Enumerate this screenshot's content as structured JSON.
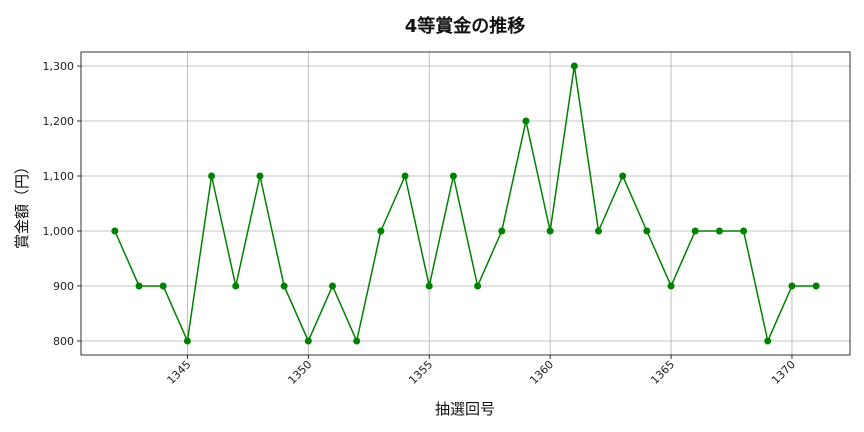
{
  "chart_data": {
    "type": "line",
    "title": "4等賞金の推移",
    "xlabel": "抽選回号",
    "ylabel": "賞金額（円）",
    "x": [
      1342,
      1343,
      1344,
      1345,
      1346,
      1347,
      1348,
      1349,
      1350,
      1351,
      1352,
      1353,
      1354,
      1355,
      1356,
      1357,
      1358,
      1359,
      1360,
      1361,
      1362,
      1363,
      1364,
      1365,
      1366,
      1367,
      1368,
      1369,
      1370,
      1371
    ],
    "series": [
      {
        "values": [
          1000,
          900,
          900,
          800,
          1100,
          900,
          1100,
          900,
          800,
          900,
          800,
          1000,
          1100,
          900,
          1100,
          900,
          1000,
          1200,
          1000,
          1300,
          1000,
          1100,
          1000,
          900,
          1000,
          1000,
          1000,
          800,
          900,
          900
        ],
        "color": "#008000"
      }
    ],
    "xticks": [
      1345,
      1350,
      1355,
      1360,
      1365,
      1370
    ],
    "xtick_labels": [
      "1345",
      "1350",
      "1355",
      "1360",
      "1365",
      "1370"
    ],
    "yticks": [
      800,
      900,
      1000,
      1100,
      1200,
      1300
    ],
    "ytick_labels": [
      "800",
      "900",
      "1,000",
      "1,100",
      "1,200",
      "1,300"
    ],
    "xlim": [
      1340.6,
      1372.4
    ],
    "ylim": [
      774.5,
      1325.5
    ],
    "grid": true,
    "marker": "circle"
  }
}
